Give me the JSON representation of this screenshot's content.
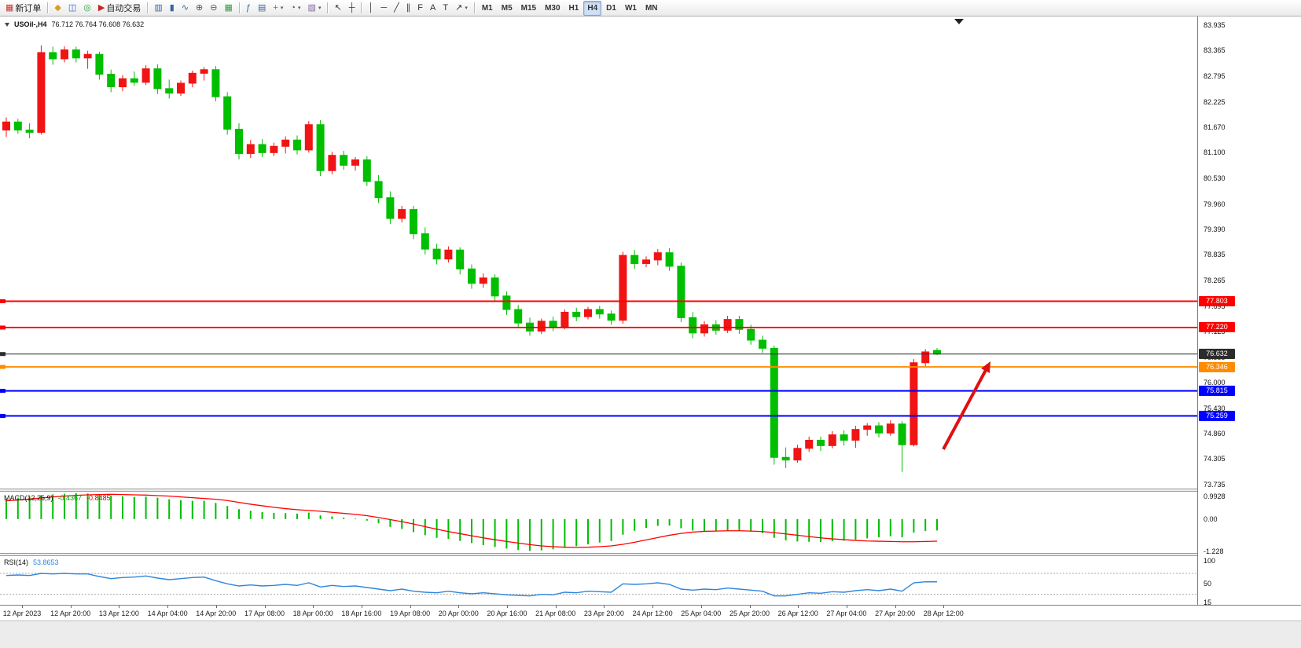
{
  "toolbar": {
    "notification_count": "1",
    "caret_glyph": "▾",
    "items": [
      {
        "t": "btn",
        "name": "new-order-button",
        "label": "新订单",
        "glyph": "▦",
        "gc": "#cc3333"
      },
      {
        "t": "sep"
      },
      {
        "t": "btn",
        "name": "profiles-button",
        "glyph": "◆",
        "gc": "#d8a020"
      },
      {
        "t": "btn",
        "name": "market-watch-button",
        "glyph": "◫",
        "gc": "#3366bb"
      },
      {
        "t": "btn",
        "name": "data-window-button",
        "glyph": "◎",
        "gc": "#2f9e44"
      },
      {
        "t": "btn",
        "name": "auto-trading-button",
        "label": "自动交易",
        "glyph": "▶",
        "gc": "#cc2222"
      },
      {
        "t": "sep"
      },
      {
        "t": "btn",
        "name": "bar-chart-button",
        "glyph": "▥",
        "gc": "#336699"
      },
      {
        "t": "btn",
        "name": "candlestick-chart-button",
        "glyph": "▮",
        "gc": "#336699"
      },
      {
        "t": "btn",
        "name": "line-chart-button",
        "glyph": "∿",
        "gc": "#336699"
      },
      {
        "t": "btn",
        "name": "zoom-in-button",
        "glyph": "⊕",
        "gc": "#555555"
      },
      {
        "t": "btn",
        "name": "zoom-out-button",
        "glyph": "⊖",
        "gc": "#555555"
      },
      {
        "t": "btn",
        "name": "tile-windows-button",
        "glyph": "▦",
        "gc": "#2f9e44"
      },
      {
        "t": "sep"
      },
      {
        "t": "btn",
        "name": "indicators-button",
        "glyph": "ƒ",
        "gc": "#336699"
      },
      {
        "t": "btn",
        "name": "objects-list-button",
        "glyph": "▤",
        "gc": "#336699"
      },
      {
        "t": "btn",
        "name": "add-indicator-button",
        "glyph": "+",
        "gc": "#2f9e44",
        "caret": true
      },
      {
        "t": "btn",
        "name": "period-button",
        "glyph": "◔",
        "gc": "#336699",
        "caret": true
      },
      {
        "t": "btn",
        "name": "templates-button",
        "glyph": "▧",
        "gc": "#8866aa",
        "caret": true
      },
      {
        "t": "sep"
      },
      {
        "t": "btn",
        "name": "cursor-button",
        "glyph": "↖",
        "gc": "#333333"
      },
      {
        "t": "btn",
        "name": "crosshair-button",
        "glyph": "┼",
        "gc": "#333333"
      },
      {
        "t": "sep"
      },
      {
        "t": "btn",
        "name": "vertical-line-button",
        "glyph": "│",
        "gc": "#333333"
      },
      {
        "t": "btn",
        "name": "horizontal-line-button",
        "glyph": "─",
        "gc": "#333333"
      },
      {
        "t": "btn",
        "name": "trendline-button",
        "glyph": "╱",
        "gc": "#333333"
      },
      {
        "t": "btn",
        "name": "channel-button",
        "glyph": "∥",
        "gc": "#333333"
      },
      {
        "t": "btn",
        "name": "fibonacci-button",
        "glyph": "F",
        "gc": "#333333"
      },
      {
        "t": "btn",
        "name": "text-button",
        "glyph": "A",
        "gc": "#333333"
      },
      {
        "t": "btn",
        "name": "text-label-button",
        "glyph": "T",
        "gc": "#333333"
      },
      {
        "t": "btn",
        "name": "arrows-button",
        "glyph": "↗",
        "gc": "#333333",
        "caret": true
      },
      {
        "t": "sep"
      },
      {
        "t": "tf",
        "name": "tf-m1",
        "label": "M1"
      },
      {
        "t": "tf",
        "name": "tf-m5",
        "label": "M5"
      },
      {
        "t": "tf",
        "name": "tf-m15",
        "label": "M15"
      },
      {
        "t": "tf",
        "name": "tf-m30",
        "label": "M30"
      },
      {
        "t": "tf",
        "name": "tf-h1",
        "label": "H1"
      },
      {
        "t": "tf",
        "name": "tf-h4",
        "label": "H4",
        "active": true
      },
      {
        "t": "tf",
        "name": "tf-d1",
        "label": "D1"
      },
      {
        "t": "tf",
        "name": "tf-w1",
        "label": "W1"
      },
      {
        "t": "tf",
        "name": "tf-mn",
        "label": "MN"
      }
    ]
  },
  "chart": {
    "symbol": "USOil-,H4",
    "ohlc": "76.712 76.764 76.608 76.632"
  },
  "chart_data": {
    "type": "candlestick",
    "symbol": "USOil-,H4",
    "timeframe": "H4",
    "colors": {
      "up": "#F01414",
      "down": "#00BE00"
    },
    "price_axis_labels": [
      "83.935",
      "83.365",
      "82.795",
      "82.225",
      "81.670",
      "81.100",
      "80.530",
      "79.960",
      "79.390",
      "78.835",
      "78.265",
      "77.695",
      "77.125",
      "76.555",
      "76.000",
      "75.430",
      "74.860",
      "74.305",
      "73.735"
    ],
    "x_labels": [
      "12 Apr 2023",
      "12 Apr 20:00",
      "13 Apr 12:00",
      "14 Apr 04:00",
      "14 Apr 20:00",
      "17 Apr 08:00",
      "18 Apr 00:00",
      "18 Apr 16:00",
      "19 Apr 08:00",
      "20 Apr 00:00",
      "20 Apr 16:00",
      "21 Apr 08:00",
      "23 Apr 20:00",
      "24 Apr 12:00",
      "25 Apr 04:00",
      "25 Apr 20:00",
      "26 Apr 12:00",
      "27 Apr 04:00",
      "27 Apr 20:00",
      "28 Apr 12:00"
    ],
    "hlines": [
      {
        "price": 77.803,
        "label": "77.803",
        "color": "#FF0000",
        "width": 2
      },
      {
        "price": 77.22,
        "label": "77.220",
        "color": "#FF0000",
        "width": 2
      },
      {
        "price": 76.632,
        "label": "76.632",
        "color": "#2B2B2B",
        "width": 1
      },
      {
        "price": 76.346,
        "label": "76.346",
        "color": "#FF8C00",
        "width": 2
      },
      {
        "price": 75.815,
        "label": "75.815",
        "color": "#0000FF",
        "width": 2
      },
      {
        "price": 75.259,
        "label": "75.259",
        "color": "#0000FF",
        "width": 2
      }
    ],
    "annotation": {
      "type": "arrow",
      "color": "#E01010",
      "from": [
        1200,
        551
      ],
      "to": [
        1260,
        439
      ]
    },
    "candles": [
      [
        81.6,
        81.88,
        81.45,
        81.78
      ],
      [
        81.78,
        81.85,
        81.52,
        81.6
      ],
      [
        81.6,
        81.75,
        81.42,
        81.55
      ],
      [
        81.55,
        83.48,
        81.5,
        83.32
      ],
      [
        83.32,
        83.45,
        83.05,
        83.18
      ],
      [
        83.18,
        83.46,
        83.1,
        83.38
      ],
      [
        83.38,
        83.45,
        83.1,
        83.2
      ],
      [
        83.2,
        83.36,
        82.96,
        83.28
      ],
      [
        83.28,
        83.34,
        82.72,
        82.84
      ],
      [
        82.84,
        82.94,
        82.44,
        82.56
      ],
      [
        82.56,
        82.82,
        82.46,
        82.74
      ],
      [
        82.74,
        82.9,
        82.58,
        82.66
      ],
      [
        82.66,
        83.04,
        82.6,
        82.96
      ],
      [
        82.96,
        83.06,
        82.4,
        82.52
      ],
      [
        82.52,
        82.72,
        82.3,
        82.42
      ],
      [
        82.42,
        82.7,
        82.36,
        82.64
      ],
      [
        82.64,
        82.92,
        82.55,
        82.86
      ],
      [
        82.86,
        83.0,
        82.7,
        82.94
      ],
      [
        82.94,
        83.02,
        82.24,
        82.34
      ],
      [
        82.34,
        82.44,
        81.5,
        81.62
      ],
      [
        81.62,
        81.75,
        80.95,
        81.08
      ],
      [
        81.08,
        81.38,
        80.98,
        81.28
      ],
      [
        81.28,
        81.4,
        81.0,
        81.1
      ],
      [
        81.1,
        81.32,
        81.02,
        81.24
      ],
      [
        81.24,
        81.46,
        81.08,
        81.38
      ],
      [
        81.38,
        81.48,
        81.06,
        81.16
      ],
      [
        81.16,
        81.8,
        81.1,
        81.72
      ],
      [
        81.72,
        81.82,
        80.58,
        80.7
      ],
      [
        80.7,
        81.12,
        80.62,
        81.04
      ],
      [
        81.04,
        81.14,
        80.72,
        80.82
      ],
      [
        80.82,
        81.0,
        80.7,
        80.94
      ],
      [
        80.94,
        81.02,
        80.36,
        80.46
      ],
      [
        80.46,
        80.6,
        79.98,
        80.1
      ],
      [
        80.1,
        80.24,
        79.52,
        79.64
      ],
      [
        79.64,
        79.92,
        79.55,
        79.84
      ],
      [
        79.84,
        79.92,
        79.18,
        79.3
      ],
      [
        79.3,
        79.44,
        78.84,
        78.96
      ],
      [
        78.96,
        79.08,
        78.62,
        78.74
      ],
      [
        78.74,
        79.02,
        78.66,
        78.94
      ],
      [
        78.94,
        79.0,
        78.4,
        78.52
      ],
      [
        78.52,
        78.62,
        78.08,
        78.2
      ],
      [
        78.2,
        78.42,
        78.1,
        78.32
      ],
      [
        78.32,
        78.4,
        77.8,
        77.92
      ],
      [
        77.92,
        78.02,
        77.5,
        77.62
      ],
      [
        77.62,
        77.72,
        77.2,
        77.32
      ],
      [
        77.32,
        77.44,
        77.04,
        77.14
      ],
      [
        77.14,
        77.42,
        77.08,
        77.36
      ],
      [
        77.36,
        77.46,
        77.14,
        77.24
      ],
      [
        77.24,
        77.62,
        77.18,
        77.56
      ],
      [
        77.56,
        77.66,
        77.36,
        77.46
      ],
      [
        77.46,
        77.68,
        77.4,
        77.62
      ],
      [
        77.62,
        77.7,
        77.42,
        77.52
      ],
      [
        77.52,
        77.6,
        77.28,
        77.38
      ],
      [
        77.38,
        78.9,
        77.3,
        78.82
      ],
      [
        78.82,
        78.94,
        78.52,
        78.64
      ],
      [
        78.64,
        78.8,
        78.56,
        78.72
      ],
      [
        78.72,
        78.96,
        78.6,
        78.88
      ],
      [
        78.88,
        78.98,
        78.48,
        78.58
      ],
      [
        78.58,
        78.66,
        77.34,
        77.44
      ],
      [
        77.44,
        77.56,
        76.98,
        77.1
      ],
      [
        77.1,
        77.36,
        77.02,
        77.28
      ],
      [
        77.28,
        77.38,
        77.06,
        77.16
      ],
      [
        77.16,
        77.48,
        77.1,
        77.4
      ],
      [
        77.4,
        77.48,
        77.08,
        77.18
      ],
      [
        77.18,
        77.28,
        76.84,
        76.94
      ],
      [
        76.94,
        77.04,
        76.66,
        76.76
      ],
      [
        76.76,
        76.82,
        74.18,
        74.34
      ],
      [
        74.34,
        74.56,
        74.1,
        74.28
      ],
      [
        74.28,
        74.62,
        74.22,
        74.54
      ],
      [
        74.54,
        74.8,
        74.46,
        74.72
      ],
      [
        74.72,
        74.8,
        74.48,
        74.6
      ],
      [
        74.6,
        74.92,
        74.54,
        74.84
      ],
      [
        74.84,
        74.94,
        74.6,
        74.72
      ],
      [
        74.72,
        75.04,
        74.55,
        74.96
      ],
      [
        74.96,
        75.1,
        74.82,
        75.04
      ],
      [
        75.04,
        75.12,
        74.78,
        74.88
      ],
      [
        74.88,
        75.16,
        74.82,
        75.08
      ],
      [
        75.08,
        75.14,
        74.02,
        74.62
      ],
      [
        74.62,
        76.52,
        74.58,
        76.44
      ],
      [
        76.44,
        76.74,
        76.36,
        76.68
      ],
      [
        76.712,
        76.764,
        76.608,
        76.632
      ]
    ],
    "indicators": [
      {
        "name": "MACD",
        "label": "MACD(12,26,9)",
        "v1": "-0.4367",
        "v2": "-0.8485",
        "axis_labels": [
          "0.9928",
          "0.00",
          "-1.228"
        ],
        "colors": {
          "histogram": "#00BE00",
          "signal": "#FF0000"
        },
        "histogram": [
          0.78,
          0.82,
          0.86,
          0.92,
          0.95,
          0.97,
          0.99,
          0.98,
          0.95,
          0.9,
          0.87,
          0.85,
          0.86,
          0.82,
          0.76,
          0.72,
          0.7,
          0.7,
          0.62,
          0.5,
          0.38,
          0.32,
          0.27,
          0.24,
          0.23,
          0.21,
          0.25,
          0.14,
          0.1,
          0.05,
          0.02,
          -0.06,
          -0.16,
          -0.3,
          -0.38,
          -0.5,
          -0.62,
          -0.72,
          -0.76,
          -0.84,
          -0.92,
          -1.0,
          -1.07,
          -1.13,
          -1.19,
          -1.22,
          -1.2,
          -1.16,
          -1.1,
          -1.04,
          -0.97,
          -0.9,
          -0.84,
          -0.6,
          -0.45,
          -0.34,
          -0.26,
          -0.25,
          -0.35,
          -0.44,
          -0.46,
          -0.46,
          -0.44,
          -0.44,
          -0.48,
          -0.54,
          -0.72,
          -0.82,
          -0.86,
          -0.87,
          -0.88,
          -0.85,
          -0.83,
          -0.79,
          -0.74,
          -0.7,
          -0.66,
          -0.7,
          -0.52,
          -0.46,
          -0.4367
        ],
        "signal": [
          0.7,
          0.73,
          0.77,
          0.81,
          0.85,
          0.88,
          0.91,
          0.93,
          0.94,
          0.95,
          0.94,
          0.93,
          0.92,
          0.9,
          0.88,
          0.85,
          0.82,
          0.79,
          0.76,
          0.71,
          0.64,
          0.57,
          0.51,
          0.45,
          0.4,
          0.36,
          0.33,
          0.3,
          0.26,
          0.22,
          0.18,
          0.13,
          0.06,
          -0.02,
          -0.1,
          -0.19,
          -0.29,
          -0.39,
          -0.48,
          -0.56,
          -0.64,
          -0.72,
          -0.79,
          -0.86,
          -0.92,
          -0.98,
          -1.03,
          -1.06,
          -1.08,
          -1.09,
          -1.08,
          -1.06,
          -1.03,
          -0.97,
          -0.89,
          -0.8,
          -0.71,
          -0.62,
          -0.55,
          -0.5,
          -0.47,
          -0.46,
          -0.45,
          -0.45,
          -0.46,
          -0.48,
          -0.52,
          -0.57,
          -0.62,
          -0.67,
          -0.72,
          -0.76,
          -0.79,
          -0.82,
          -0.84,
          -0.85,
          -0.86,
          -0.87,
          -0.87,
          -0.86,
          -0.8485
        ]
      },
      {
        "name": "RSI",
        "label": "RSI(14)",
        "v1": "53.8653",
        "axis_labels": [
          "100",
          "50",
          "15"
        ],
        "levels": [
          70,
          30
        ],
        "color": "#2E86DE",
        "values": [
          66,
          67,
          66,
          70,
          69,
          70,
          69,
          69,
          64,
          60,
          62,
          63,
          65,
          61,
          58,
          60,
          62,
          63,
          56,
          50,
          46,
          48,
          46,
          47,
          49,
          47,
          52,
          44,
          47,
          45,
          46,
          43,
          40,
          37,
          40,
          36,
          34,
          33,
          36,
          33,
          31,
          33,
          31,
          29,
          28,
          27,
          30,
          29,
          34,
          33,
          36,
          35,
          34,
          50,
          49,
          50,
          52,
          49,
          40,
          38,
          40,
          39,
          42,
          40,
          38,
          36,
          27,
          27,
          30,
          33,
          32,
          35,
          34,
          37,
          39,
          37,
          40,
          36,
          52,
          54,
          53.87
        ]
      }
    ]
  }
}
